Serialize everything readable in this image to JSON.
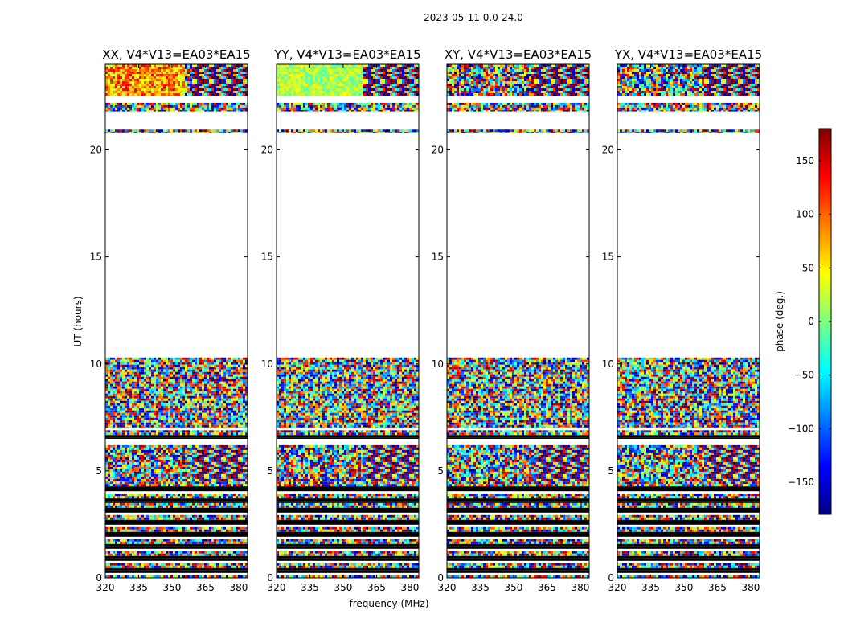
{
  "figure": {
    "suptitle": "2023-05-11 0.0-24.0"
  },
  "chart_data": [
    {
      "type": "heatmap",
      "title": "XX, V4*V13=EA03*EA15",
      "polarization": "XX",
      "xlabel": "frequency (MHz)",
      "ylabel": "UT (hours)",
      "xlim": [
        320,
        384
      ],
      "ylim": [
        0,
        24
      ],
      "xticks": [
        "320",
        "335",
        "350",
        "365",
        "380"
      ],
      "yticks": [
        "0",
        "5",
        "10",
        "15",
        "20"
      ],
      "value": "phase (deg.)",
      "data_segments_ut_hours": [
        {
          "start": 0.0,
          "end": 3.5,
          "pattern": "intermittent"
        },
        {
          "start": 3.5,
          "end": 4.5,
          "pattern": "intermittent"
        },
        {
          "start": 4.5,
          "end": 6.2,
          "pattern": "noise with fringes"
        },
        {
          "start": 6.5,
          "end": 6.9,
          "pattern": "intermittent"
        },
        {
          "start": 7.0,
          "end": 10.3,
          "pattern": "noise"
        },
        {
          "start": 20.8,
          "end": 20.95,
          "pattern": "thin band"
        },
        {
          "start": 21.8,
          "end": 22.2,
          "pattern": "noise"
        },
        {
          "start": 22.5,
          "end": 24.0,
          "pattern": "noise with fringes"
        }
      ]
    },
    {
      "type": "heatmap",
      "title": "YY, V4*V13=EA03*EA15",
      "polarization": "YY",
      "xlabel": "frequency (MHz)",
      "ylabel": "UT (hours)",
      "xlim": [
        320,
        384
      ],
      "ylim": [
        0,
        24
      ],
      "xticks": [
        "320",
        "335",
        "350",
        "365",
        "380"
      ],
      "yticks": [
        "0",
        "5",
        "10",
        "15",
        "20"
      ],
      "value": "phase (deg.)",
      "data_segments_ut_hours": [
        {
          "start": 0.0,
          "end": 3.5,
          "pattern": "intermittent"
        },
        {
          "start": 3.5,
          "end": 4.5,
          "pattern": "intermittent"
        },
        {
          "start": 4.5,
          "end": 6.2,
          "pattern": "noise with fringes"
        },
        {
          "start": 6.5,
          "end": 6.9,
          "pattern": "intermittent"
        },
        {
          "start": 7.0,
          "end": 10.3,
          "pattern": "noise"
        },
        {
          "start": 20.8,
          "end": 20.95,
          "pattern": "thin band"
        },
        {
          "start": 21.8,
          "end": 22.2,
          "pattern": "noise"
        },
        {
          "start": 22.5,
          "end": 24.0,
          "pattern": "noise with fringes"
        }
      ]
    },
    {
      "type": "heatmap",
      "title": "XY, V4*V13=EA03*EA15",
      "polarization": "XY",
      "xlabel": "frequency (MHz)",
      "ylabel": "UT (hours)",
      "xlim": [
        320,
        384
      ],
      "ylim": [
        0,
        24
      ],
      "xticks": [
        "320",
        "335",
        "350",
        "365",
        "380"
      ],
      "yticks": [
        "0",
        "5",
        "10",
        "15",
        "20"
      ],
      "value": "phase (deg.)",
      "data_segments_ut_hours": [
        {
          "start": 0.0,
          "end": 3.5,
          "pattern": "intermittent"
        },
        {
          "start": 3.5,
          "end": 4.5,
          "pattern": "intermittent"
        },
        {
          "start": 4.5,
          "end": 6.2,
          "pattern": "noise with fringes"
        },
        {
          "start": 6.5,
          "end": 6.9,
          "pattern": "intermittent"
        },
        {
          "start": 7.0,
          "end": 10.3,
          "pattern": "noise"
        },
        {
          "start": 20.8,
          "end": 20.95,
          "pattern": "thin band"
        },
        {
          "start": 21.8,
          "end": 22.2,
          "pattern": "noise"
        },
        {
          "start": 22.5,
          "end": 24.0,
          "pattern": "noise with fringes"
        }
      ]
    },
    {
      "type": "heatmap",
      "title": "YX, V4*V13=EA03*EA15",
      "polarization": "YX",
      "xlabel": "frequency (MHz)",
      "ylabel": "UT (hours)",
      "xlim": [
        320,
        384
      ],
      "ylim": [
        0,
        24
      ],
      "xticks": [
        "320",
        "335",
        "350",
        "365",
        "380"
      ],
      "yticks": [
        "0",
        "5",
        "10",
        "15",
        "20"
      ],
      "value": "phase (deg.)",
      "data_segments_ut_hours": [
        {
          "start": 0.0,
          "end": 3.5,
          "pattern": "intermittent"
        },
        {
          "start": 3.5,
          "end": 4.5,
          "pattern": "intermittent"
        },
        {
          "start": 4.5,
          "end": 6.2,
          "pattern": "noise with fringes"
        },
        {
          "start": 6.5,
          "end": 6.9,
          "pattern": "intermittent"
        },
        {
          "start": 7.0,
          "end": 10.3,
          "pattern": "noise"
        },
        {
          "start": 20.8,
          "end": 20.95,
          "pattern": "thin band"
        },
        {
          "start": 21.8,
          "end": 22.2,
          "pattern": "noise"
        },
        {
          "start": 22.5,
          "end": 24.0,
          "pattern": "noise with fringes"
        }
      ]
    }
  ],
  "x_axis_label": "frequency (MHz)",
  "y_axis_label": "UT (hours)",
  "colorbar": {
    "label": "phase (deg.)",
    "range": [
      -180,
      180
    ],
    "ticks": [
      {
        "value": 150,
        "label": "150"
      },
      {
        "value": 100,
        "label": "100"
      },
      {
        "value": 50,
        "label": "50"
      },
      {
        "value": 0,
        "label": "0"
      },
      {
        "value": -50,
        "label": "−50"
      },
      {
        "value": -100,
        "label": "−100"
      },
      {
        "value": -150,
        "label": "−150"
      }
    ],
    "colormap": [
      "#00007f",
      "#0000ff",
      "#007fff",
      "#00ffff",
      "#7fff7f",
      "#ffff00",
      "#ff7f00",
      "#ff0000",
      "#7f0000"
    ]
  }
}
